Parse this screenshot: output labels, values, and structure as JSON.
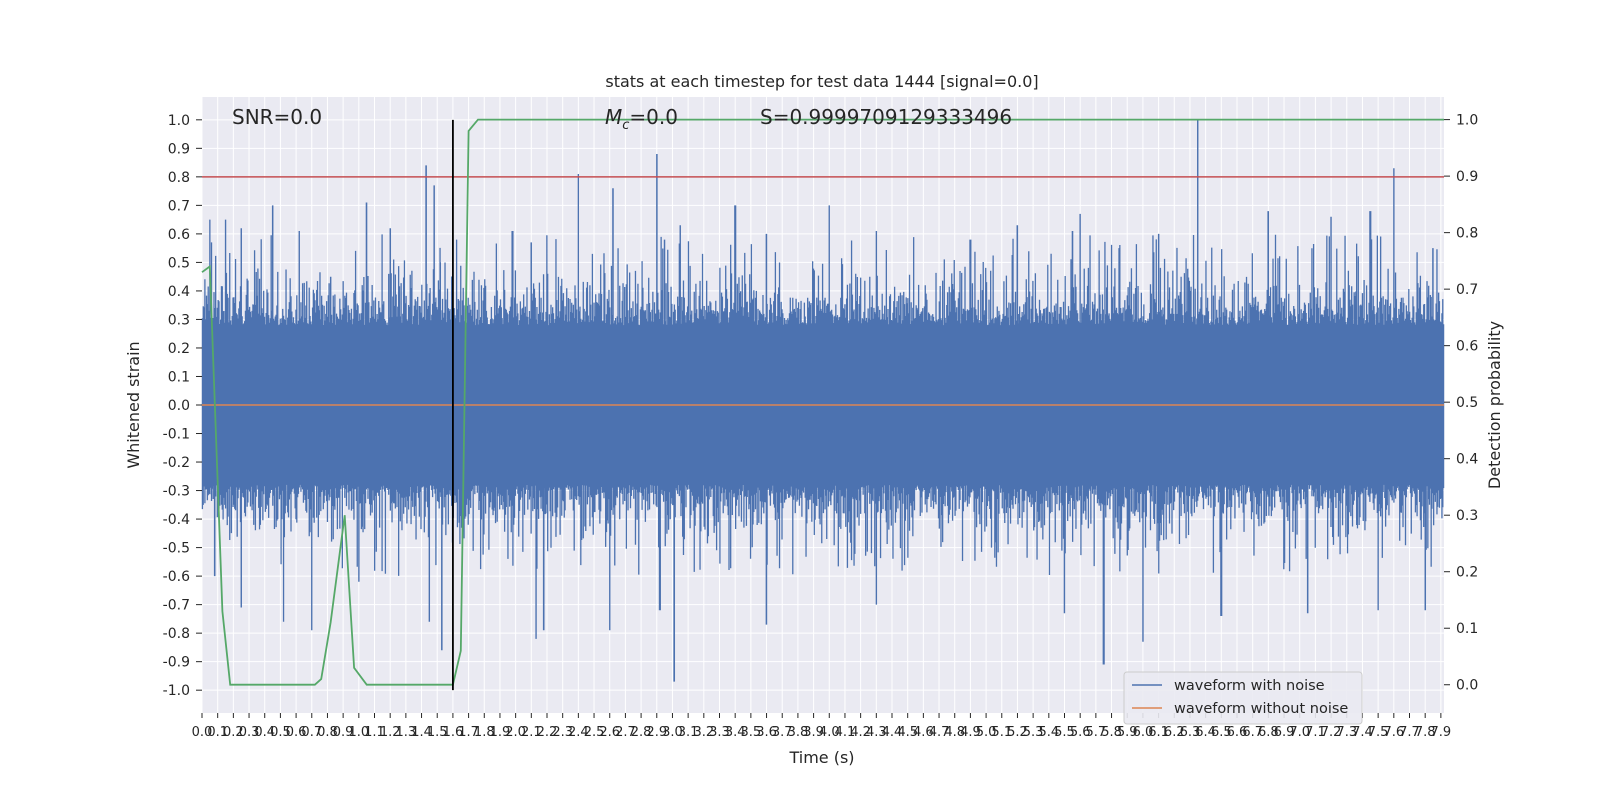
{
  "chart_data": {
    "type": "line",
    "title": "stats at each timestep for test data 1444 [signal=0.0]",
    "xlabel": "Time (s)",
    "ylabel": "Whitened strain",
    "y2label": "Detection probability",
    "xlim": [
      0,
      7.92
    ],
    "ylim": [
      -1.08,
      1.08
    ],
    "y2lim": [
      -0.05,
      1.04
    ],
    "xticks": [
      0.0,
      0.1,
      0.2,
      0.3,
      0.4,
      0.5,
      0.6,
      0.7,
      0.8,
      0.9,
      1.0,
      1.1,
      1.2,
      1.3,
      1.4,
      1.5,
      1.6,
      1.7,
      1.8,
      1.9,
      2.0,
      2.1,
      2.2,
      2.3,
      2.4,
      2.5,
      2.6,
      2.7,
      2.8,
      2.9,
      3.0,
      3.1,
      3.2,
      3.3,
      3.4,
      3.5,
      3.6,
      3.7,
      3.8,
      3.9,
      4.0,
      4.1,
      4.2,
      4.3,
      4.4,
      4.5,
      4.6,
      4.7,
      4.8,
      4.9,
      5.0,
      5.1,
      5.2,
      5.3,
      5.4,
      5.5,
      5.6,
      5.7,
      5.8,
      5.9,
      6.0,
      6.1,
      6.2,
      6.3,
      6.4,
      6.5,
      6.6,
      6.7,
      6.8,
      6.9,
      7.0,
      7.1,
      7.2,
      7.3,
      7.4,
      7.5,
      7.6,
      7.7,
      7.8,
      7.9
    ],
    "yticks": [
      -1.0,
      -0.9,
      -0.8,
      -0.7,
      -0.6,
      -0.5,
      -0.4,
      -0.3,
      -0.2,
      -0.1,
      0.0,
      0.1,
      0.2,
      0.3,
      0.4,
      0.5,
      0.6,
      0.7,
      0.8,
      0.9,
      1.0
    ],
    "y2ticks": [
      0.0,
      0.1,
      0.2,
      0.3,
      0.4,
      0.5,
      0.6,
      0.7,
      0.8,
      0.9,
      1.0
    ],
    "grid": true,
    "legend_position": "lower-right",
    "annotations": {
      "snr": "SNR=0.0",
      "mc": "=0.0",
      "mc_symbol": "M",
      "mc_sub": "c",
      "s": "S=0.9999709129333496"
    },
    "colors": {
      "noise": "#4c72b0",
      "clean": "#dd8452",
      "prob": "#55a868",
      "threshold": "#c44e52",
      "marker": "#000000",
      "bg": "#eaeaf2"
    },
    "series": [
      {
        "name": "waveform with noise",
        "description_peaks": {
          "x": [
            0.05,
            0.15,
            0.25,
            0.45,
            0.62,
            0.82,
            1.05,
            1.2,
            1.43,
            1.48,
            1.52,
            1.98,
            2.1,
            2.4,
            2.62,
            2.9,
            2.95,
            3.05,
            3.4,
            3.6,
            4.0,
            4.3,
            4.9,
            5.2,
            5.55,
            5.6,
            5.85,
            6.1,
            6.35,
            6.8,
            7.2,
            7.45,
            7.6,
            7.85
          ],
          "y": [
            0.65,
            0.65,
            0.62,
            0.7,
            0.61,
            0.45,
            0.71,
            0.62,
            0.84,
            0.77,
            0.5,
            0.61,
            0.57,
            0.81,
            0.76,
            0.88,
            0.58,
            0.63,
            0.7,
            0.6,
            0.7,
            0.61,
            0.58,
            0.63,
            0.61,
            0.67,
            0.55,
            0.6,
            1.0,
            0.68,
            0.66,
            0.68,
            0.83,
            0.55
          ],
          "neg_x": [
            0.08,
            0.25,
            0.52,
            0.7,
            1.0,
            1.45,
            1.53,
            2.13,
            2.18,
            2.6,
            2.92,
            3.01,
            3.6,
            4.3,
            5.5,
            5.75,
            6.0,
            6.5,
            7.05,
            7.5,
            7.8
          ],
          "neg_y": [
            -0.6,
            -0.71,
            -0.76,
            -0.79,
            -0.62,
            -0.76,
            -0.86,
            -0.82,
            -0.79,
            -0.79,
            -0.72,
            -0.97,
            -0.77,
            -0.7,
            -0.73,
            -0.91,
            -0.83,
            -0.74,
            -0.73,
            -0.72,
            -0.72
          ]
        }
      },
      {
        "name": "waveform without noise",
        "x": [
          0.0,
          7.92
        ],
        "y": [
          0.0,
          0.0
        ]
      },
      {
        "name": "",
        "axis": "y2",
        "x": [
          0.0,
          0.05,
          0.13,
          0.18,
          0.2,
          0.3,
          0.5,
          0.6,
          0.72,
          0.76,
          0.82,
          0.91,
          0.97,
          1.05,
          1.2,
          1.3,
          1.46,
          1.55,
          1.6,
          1.65,
          1.7,
          1.76,
          5.0,
          7.92
        ],
        "y": [
          0.73,
          0.74,
          0.13,
          0.0,
          0.0,
          0.0,
          0.0,
          0.0,
          0.0,
          0.01,
          0.11,
          0.3,
          0.03,
          0.0,
          0.0,
          0.0,
          0.0,
          0.0,
          0.0,
          0.06,
          0.98,
          1.0,
          1.0,
          1.0
        ]
      }
    ],
    "threshold_y": 0.8,
    "marker_x": 1.6,
    "marker_y_range": [
      -1.0,
      1.0
    ]
  }
}
